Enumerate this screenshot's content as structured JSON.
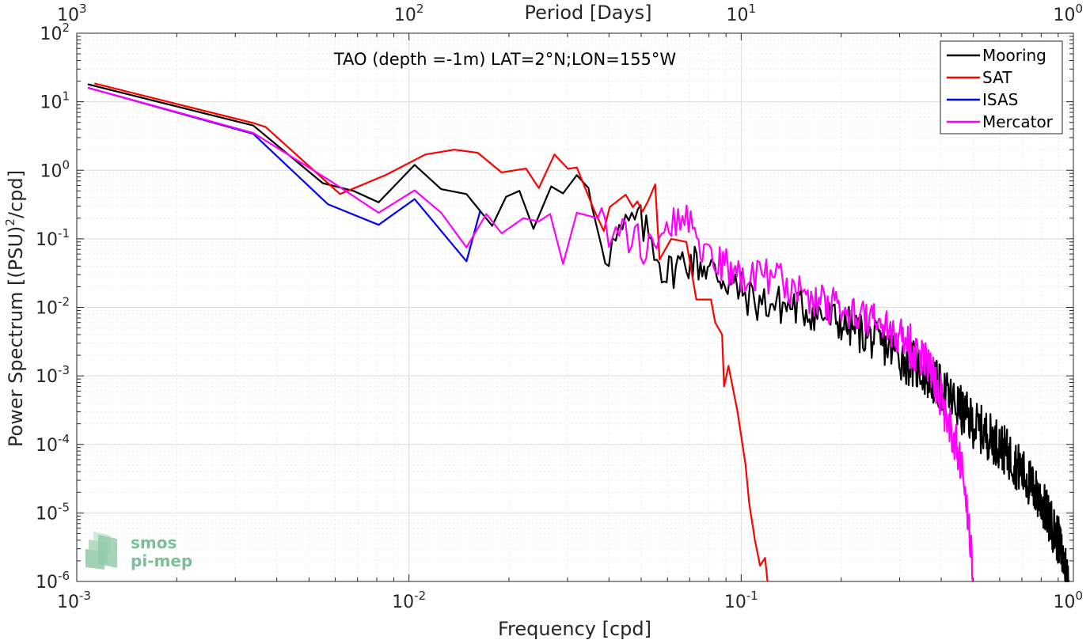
{
  "chart_data": {
    "type": "line",
    "title": "TAO (depth =-1m) LAT=2°N;LON=155°W",
    "xlabel": "Frequency [cpd]",
    "ylabel_main": "Power Spectrum [(PSU)",
    "ylabel_sup": "2",
    "ylabel_tail": "/cpd]",
    "top_xlabel": "Period [Days]",
    "xscale": "log",
    "yscale": "log",
    "xlim": [
      0.001,
      1
    ],
    "ylim": [
      1e-06,
      100
    ],
    "grid": true,
    "legend_position": "top-right",
    "x_ticks": [
      {
        "value": 0.001,
        "base": "10",
        "exp": "-3"
      },
      {
        "value": 0.01,
        "base": "10",
        "exp": "-2"
      },
      {
        "value": 0.1,
        "base": "10",
        "exp": "-1"
      },
      {
        "value": 1,
        "base": "10",
        "exp": "0"
      }
    ],
    "top_ticks": [
      {
        "value": 1000,
        "base": "10",
        "exp": "3"
      },
      {
        "value": 100,
        "base": "10",
        "exp": "2"
      },
      {
        "value": 10,
        "base": "10",
        "exp": "1"
      },
      {
        "value": 1,
        "base": "10",
        "exp": "0"
      }
    ],
    "y_ticks": [
      {
        "value": 100,
        "base": "10",
        "exp": "2"
      },
      {
        "value": 10,
        "base": "10",
        "exp": "1"
      },
      {
        "value": 1,
        "base": "10",
        "exp": "0"
      },
      {
        "value": 0.1,
        "base": "10",
        "exp": "-1"
      },
      {
        "value": 0.01,
        "base": "10",
        "exp": "-2"
      },
      {
        "value": 0.001,
        "base": "10",
        "exp": "-3"
      },
      {
        "value": 0.0001,
        "base": "10",
        "exp": "-4"
      },
      {
        "value": 1e-05,
        "base": "10",
        "exp": "-5"
      },
      {
        "value": 1e-06,
        "base": "10",
        "exp": "-6"
      }
    ],
    "series": [
      {
        "name": "Mooring",
        "color": "#000000",
        "anchors": [
          [
            0.00108,
            18
          ],
          [
            0.0034,
            4.5
          ],
          [
            0.0055,
            0.65
          ],
          [
            0.0068,
            0.5
          ],
          [
            0.0081,
            0.34
          ],
          [
            0.0104,
            1.2
          ],
          [
            0.0125,
            0.53
          ],
          [
            0.0149,
            0.45
          ],
          [
            0.0178,
            0.155
          ],
          [
            0.0196,
            0.41
          ],
          [
            0.0215,
            0.5
          ],
          [
            0.0237,
            0.14
          ],
          [
            0.0268,
            0.58
          ],
          [
            0.0291,
            0.46
          ],
          [
            0.032,
            0.85
          ],
          [
            0.0347,
            0.55
          ],
          [
            0.0355,
            0.3
          ],
          [
            0.0394,
            0.06
          ],
          [
            0.0433,
            0.115
          ],
          [
            0.0483,
            0.2
          ],
          [
            0.0542,
            0.09
          ],
          [
            0.059,
            0.03
          ],
          [
            0.068,
            0.05
          ],
          [
            0.078,
            0.04
          ],
          [
            0.09,
            0.025
          ],
          [
            0.11,
            0.012
          ],
          [
            0.15,
            0.01
          ],
          [
            0.2,
            0.006
          ],
          [
            0.28,
            0.0025
          ],
          [
            0.35,
            0.0012
          ],
          [
            0.42,
            0.0005
          ],
          [
            0.5,
            0.0002
          ],
          [
            0.6,
            0.0001
          ],
          [
            0.7,
            4e-05
          ],
          [
            0.8,
            1.5e-05
          ],
          [
            0.9,
            4e-06
          ],
          [
            0.97,
            1e-06
          ]
        ],
        "noise": 0.3
      },
      {
        "name": "SAT",
        "color": "#ff0000",
        "anchors": [
          [
            0.00113,
            18.5
          ],
          [
            0.0034,
            4.9
          ],
          [
            0.0037,
            4.3
          ],
          [
            0.0062,
            0.45
          ],
          [
            0.0085,
            0.85
          ],
          [
            0.0112,
            1.7
          ],
          [
            0.0137,
            2.0
          ],
          [
            0.0161,
            1.8
          ],
          [
            0.019,
            0.93
          ],
          [
            0.0208,
            1.0
          ],
          [
            0.0225,
            1.06
          ],
          [
            0.0246,
            0.55
          ],
          [
            0.0274,
            1.7
          ],
          [
            0.0301,
            1.05
          ],
          [
            0.032,
            1.1
          ],
          [
            0.036,
            0.27
          ],
          [
            0.0386,
            0.13
          ],
          [
            0.0402,
            0.29
          ],
          [
            0.0449,
            0.44
          ],
          [
            0.0472,
            0.29
          ],
          [
            0.0487,
            0.35
          ],
          [
            0.0505,
            0.25
          ],
          [
            0.0524,
            0.35
          ],
          [
            0.0551,
            0.62
          ],
          [
            0.0568,
            0.05
          ],
          [
            0.0616,
            0.1
          ],
          [
            0.0684,
            0.09
          ],
          [
            0.0733,
            0.013
          ],
          [
            0.0811,
            0.013
          ],
          [
            0.0835,
            0.006
          ],
          [
            0.0876,
            0.004
          ],
          [
            0.0888,
            0.0007
          ],
          [
            0.0916,
            0.0014
          ],
          [
            0.0975,
            0.0003
          ],
          [
            0.1031,
            5e-05
          ],
          [
            0.1057,
            1.4e-05
          ],
          [
            0.11,
            4e-06
          ],
          [
            0.114,
            1.7e-06
          ],
          [
            0.118,
            2.2e-06
          ],
          [
            0.12,
            1e-06
          ]
        ],
        "noise": 0
      },
      {
        "name": "ISAS",
        "color": "#0000ff",
        "anchors": [
          [
            0.00108,
            16
          ],
          [
            0.0034,
            3.4
          ],
          [
            0.0057,
            0.32
          ],
          [
            0.0081,
            0.16
          ],
          [
            0.0104,
            0.38
          ],
          [
            0.0149,
            0.047
          ],
          [
            0.0164,
            0.26
          ]
        ],
        "noise": 0
      },
      {
        "name": "Mercator",
        "color": "#ff00ff",
        "anchors": [
          [
            0.00108,
            16
          ],
          [
            0.0034,
            3.5
          ],
          [
            0.0058,
            0.7
          ],
          [
            0.0081,
            0.24
          ],
          [
            0.0104,
            0.51
          ],
          [
            0.0125,
            0.24
          ],
          [
            0.0149,
            0.075
          ],
          [
            0.0171,
            0.23
          ],
          [
            0.019,
            0.12
          ],
          [
            0.0221,
            0.2
          ],
          [
            0.0246,
            0.18
          ],
          [
            0.0266,
            0.23
          ],
          [
            0.0291,
            0.043
          ],
          [
            0.032,
            0.24
          ],
          [
            0.037,
            0.2
          ],
          [
            0.04,
            0.09
          ],
          [
            0.045,
            0.12
          ],
          [
            0.05,
            0.08
          ],
          [
            0.055,
            0.06
          ],
          [
            0.06,
            0.15
          ],
          [
            0.07,
            0.2
          ],
          [
            0.08,
            0.05
          ],
          [
            0.1,
            0.03
          ],
          [
            0.13,
            0.025
          ],
          [
            0.17,
            0.012
          ],
          [
            0.2,
            0.01
          ],
          [
            0.25,
            0.006
          ],
          [
            0.3,
            0.004
          ],
          [
            0.35,
            0.002
          ],
          [
            0.4,
            0.0005
          ],
          [
            0.43,
            0.00015
          ],
          [
            0.46,
            5e-05
          ],
          [
            0.48,
            1e-05
          ],
          [
            0.49,
            4e-06
          ],
          [
            0.5,
            1e-06
          ]
        ],
        "noise": 0.28
      }
    ]
  },
  "watermark": {
    "line1": "smos",
    "line2": "pi-mep"
  }
}
